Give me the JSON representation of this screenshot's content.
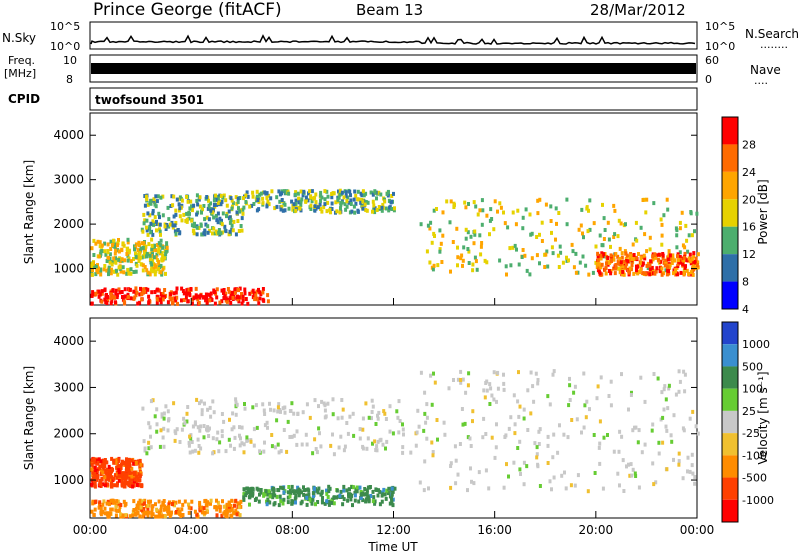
{
  "header": {
    "title": "Prince George (fitACF)",
    "beam": "Beam 13",
    "date": "28/Mar/2012"
  },
  "strip_panels": {
    "nsky": {
      "label": "N.Sky",
      "tick_top": "10^5",
      "tick_bottom": "10^0",
      "right_label": "N.Search",
      "right_dots": "........"
    },
    "freq": {
      "label_1": "Freq.",
      "label_2": "[MHz]",
      "tick_top": "10",
      "tick_bottom": "8",
      "right_tick_top": "60",
      "right_tick_bottom": "0",
      "right_label": "Nave",
      "right_dots": "...."
    },
    "cpid": {
      "label": "CPID",
      "value": "twofsound 3501"
    }
  },
  "chart_data": [
    {
      "type": "heatmap",
      "panel": "power",
      "ylabel": "Slant Range [km]",
      "ylim": [
        180,
        4500
      ],
      "yticks": [
        "1000",
        "2000",
        "3000",
        "4000"
      ],
      "xlim": [
        0,
        24
      ],
      "colorbar": {
        "label": "Power [dB]",
        "ticks": [
          "28",
          "24",
          "20",
          "16",
          "12",
          "8",
          "4"
        ],
        "colors": [
          "#ff0000",
          "#ff6b00",
          "#ffa500",
          "#e6d200",
          "#4cae6e",
          "#2e6fa8",
          "#0000ff"
        ]
      },
      "bands": [
        {
          "x": [
            0,
            3
          ],
          "y": [
            900,
            1700
          ],
          "power": 16
        },
        {
          "x": [
            0,
            7
          ],
          "y": [
            250,
            600
          ],
          "power": 28
        },
        {
          "x": [
            2,
            6
          ],
          "y": [
            1800,
            2700
          ],
          "power": 12
        },
        {
          "x": [
            6,
            12
          ],
          "y": [
            2300,
            2800
          ],
          "power": 12
        },
        {
          "x": [
            13,
            24
          ],
          "y": [
            900,
            2600
          ],
          "power": 16
        },
        {
          "x": [
            20,
            24
          ],
          "y": [
            900,
            1400
          ],
          "power": 24
        }
      ]
    },
    {
      "type": "heatmap",
      "panel": "velocity",
      "ylabel": "Slant Range [km]",
      "ylim": [
        180,
        4500
      ],
      "yticks": [
        "1000",
        "2000",
        "3000",
        "4000"
      ],
      "xlim": [
        0,
        24
      ],
      "xticks": [
        "00:00",
        "04:00",
        "08:00",
        "12:00",
        "16:00",
        "20:00",
        "00:00"
      ],
      "xlabel": "Time UT",
      "colorbar": {
        "label": "Velocity [m s⁻¹]",
        "ticks": [
          "1000",
          "500",
          "100",
          "25",
          "-25",
          "-100",
          "-500",
          "-1000"
        ],
        "colors": [
          "#2244cc",
          "#3a8fd0",
          "#3c8a4c",
          "#66cc33",
          "#c8c8c8",
          "#f0c030",
          "#ff8c00",
          "#ff4000",
          "#ff0000"
        ]
      },
      "bands": [
        {
          "x": [
            0,
            2
          ],
          "y": [
            900,
            1500
          ],
          "velocity": -500
        },
        {
          "x": [
            0,
            6
          ],
          "y": [
            250,
            600
          ],
          "velocity": -250
        },
        {
          "x": [
            2,
            13
          ],
          "y": [
            1600,
            2800
          ],
          "velocity": 0
        },
        {
          "x": [
            6,
            12
          ],
          "y": [
            500,
            900
          ],
          "velocity": 100
        },
        {
          "x": [
            13,
            24
          ],
          "y": [
            800,
            3400
          ],
          "velocity": 0
        }
      ]
    }
  ]
}
